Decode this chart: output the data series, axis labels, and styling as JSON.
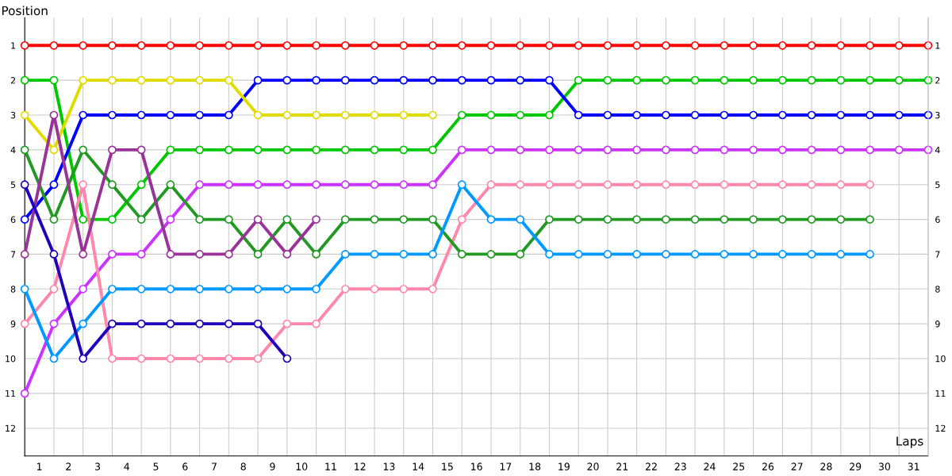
{
  "chart_data": {
    "type": "line",
    "xlabel": "Laps",
    "ylabel": "Position",
    "x": [
      0,
      1,
      2,
      3,
      4,
      5,
      6,
      7,
      8,
      9,
      10,
      11,
      12,
      13,
      14,
      15,
      16,
      17,
      18,
      19,
      20,
      21,
      22,
      23,
      24,
      25,
      26,
      27,
      28,
      29,
      30,
      31
    ],
    "xlim": [
      0,
      31
    ],
    "xticks": [
      {
        "value": 0.5,
        "label": "1"
      },
      {
        "value": 1.5,
        "label": "2"
      },
      {
        "value": 2.5,
        "label": "3"
      },
      {
        "value": 3.5,
        "label": "4"
      },
      {
        "value": 4.5,
        "label": "5"
      },
      {
        "value": 5.5,
        "label": "6"
      },
      {
        "value": 6.5,
        "label": "7"
      },
      {
        "value": 7.5,
        "label": "8"
      },
      {
        "value": 8.5,
        "label": "9"
      },
      {
        "value": 9.5,
        "label": "10"
      },
      {
        "value": 10.5,
        "label": "11"
      },
      {
        "value": 11.5,
        "label": "12"
      },
      {
        "value": 12.5,
        "label": "13"
      },
      {
        "value": 13.5,
        "label": "14"
      },
      {
        "value": 14.5,
        "label": "15"
      },
      {
        "value": 15.5,
        "label": "16"
      },
      {
        "value": 16.5,
        "label": "17"
      },
      {
        "value": 17.5,
        "label": "18"
      },
      {
        "value": 18.5,
        "label": "19"
      },
      {
        "value": 19.5,
        "label": "20"
      },
      {
        "value": 20.5,
        "label": "21"
      },
      {
        "value": 21.5,
        "label": "22"
      },
      {
        "value": 22.5,
        "label": "23"
      },
      {
        "value": 23.5,
        "label": "24"
      },
      {
        "value": 24.5,
        "label": "25"
      },
      {
        "value": 25.5,
        "label": "26"
      },
      {
        "value": 26.5,
        "label": "27"
      },
      {
        "value": 27.5,
        "label": "28"
      },
      {
        "value": 28.5,
        "label": "29"
      },
      {
        "value": 29.5,
        "label": "30"
      },
      {
        "value": 30.5,
        "label": "31"
      },
      {
        "value": 0,
        "label": null
      },
      {
        "value": 1,
        "label": null
      },
      {
        "value": 2,
        "label": null
      },
      {
        "value": 3,
        "label": null
      },
      {
        "value": 4,
        "label": null
      },
      {
        "value": 5,
        "label": null
      },
      {
        "value": 6,
        "label": null
      },
      {
        "value": 7,
        "label": null
      },
      {
        "value": 8,
        "label": null
      },
      {
        "value": 9,
        "label": null
      },
      {
        "value": 10,
        "label": null
      },
      {
        "value": 11,
        "label": null
      },
      {
        "value": 12,
        "label": null
      },
      {
        "value": 13,
        "label": null
      },
      {
        "value": 14,
        "label": null
      },
      {
        "value": 15,
        "label": null
      },
      {
        "value": 16,
        "label": null
      },
      {
        "value": 17,
        "label": null
      },
      {
        "value": 18,
        "label": null
      },
      {
        "value": 19,
        "label": null
      },
      {
        "value": 20,
        "label": null
      },
      {
        "value": 21,
        "label": null
      },
      {
        "value": 22,
        "label": null
      },
      {
        "value": 23,
        "label": null
      },
      {
        "value": 24,
        "label": null
      },
      {
        "value": 25,
        "label": null
      },
      {
        "value": 26,
        "label": null
      },
      {
        "value": 27,
        "label": null
      },
      {
        "value": 28,
        "label": null
      },
      {
        "value": 29,
        "label": null
      },
      {
        "value": 30,
        "label": null
      },
      {
        "value": 31,
        "label": null
      }
    ],
    "ylim": [
      12.8,
      0.2
    ],
    "yticks": [
      1,
      2,
      3,
      4,
      5,
      6,
      7,
      8,
      9,
      10,
      11,
      12
    ],
    "y2lim": [
      12.8,
      0.2
    ],
    "y2ticks": [
      1,
      2,
      3,
      4,
      5,
      6,
      7,
      8,
      9,
      10,
      11,
      12
    ],
    "grid": true,
    "legend": false,
    "marker": "circle",
    "line_style": "solid",
    "series": [
      {
        "color": "#ff0000",
        "values": [
          1,
          1,
          1,
          1,
          1,
          1,
          1,
          1,
          1,
          1,
          1,
          1,
          1,
          1,
          1,
          1,
          1,
          1,
          1,
          1,
          1,
          1,
          1,
          1,
          1,
          1,
          1,
          1,
          1,
          1,
          1,
          1
        ]
      },
      {
        "color": "#00c800",
        "values": [
          2,
          2,
          6,
          6,
          5,
          4,
          4,
          4,
          4,
          4,
          4,
          4,
          4,
          4,
          4,
          3,
          3,
          3,
          3,
          2,
          2,
          2,
          2,
          2,
          2,
          2,
          2,
          2,
          2,
          2,
          2,
          2
        ]
      },
      {
        "color": "#0000ff",
        "values": [
          6,
          5,
          3,
          3,
          3,
          3,
          3,
          3,
          2,
          2,
          2,
          2,
          2,
          2,
          2,
          2,
          2,
          2,
          2,
          3,
          3,
          3,
          3,
          3,
          3,
          3,
          3,
          3,
          3,
          3,
          3,
          3
        ]
      },
      {
        "color": "#e0dc00",
        "values": [
          3,
          4,
          2,
          2,
          2,
          2,
          2,
          2,
          3,
          3,
          3,
          3,
          3,
          3,
          3,
          null,
          null,
          null,
          null,
          null,
          null,
          null,
          null,
          null,
          null,
          null,
          null,
          null,
          null,
          null,
          null,
          null
        ]
      },
      {
        "color": "#cc33ff",
        "values": [
          11,
          9,
          8,
          7,
          7,
          6,
          5,
          5,
          5,
          5,
          5,
          5,
          5,
          5,
          5,
          4,
          4,
          4,
          4,
          4,
          4,
          4,
          4,
          4,
          4,
          4,
          4,
          4,
          4,
          4,
          4,
          4
        ]
      },
      {
        "color": "#ff88aa",
        "values": [
          9,
          8,
          5,
          10,
          10,
          10,
          10,
          10,
          10,
          9,
          9,
          8,
          8,
          8,
          8,
          6,
          5,
          5,
          5,
          5,
          5,
          5,
          5,
          5,
          5,
          5,
          5,
          5,
          5,
          5,
          null,
          null
        ]
      },
      {
        "color": "#229922",
        "values": [
          4,
          6,
          4,
          5,
          6,
          5,
          6,
          6,
          7,
          6,
          7,
          6,
          6,
          6,
          6,
          7,
          7,
          7,
          6,
          6,
          6,
          6,
          6,
          6,
          6,
          6,
          6,
          6,
          6,
          6,
          null,
          null
        ]
      },
      {
        "color": "#993399",
        "values": [
          7,
          3,
          7,
          4,
          4,
          7,
          7,
          7,
          6,
          7,
          6,
          null,
          null,
          null,
          null,
          null,
          null,
          null,
          null,
          null,
          null,
          null,
          null,
          null,
          null,
          null,
          null,
          null,
          null,
          null,
          null,
          null
        ]
      },
      {
        "color": "#0099ff",
        "values": [
          8,
          10,
          9,
          8,
          8,
          8,
          8,
          8,
          8,
          8,
          8,
          7,
          7,
          7,
          7,
          5,
          6,
          6,
          7,
          7,
          7,
          7,
          7,
          7,
          7,
          7,
          7,
          7,
          7,
          7,
          null,
          null
        ]
      },
      {
        "color": "#2200bb",
        "values": [
          5,
          7,
          10,
          9,
          9,
          9,
          9,
          9,
          9,
          10,
          null,
          null,
          null,
          null,
          null,
          null,
          null,
          null,
          null,
          null,
          null,
          null,
          null,
          null,
          null,
          null,
          null,
          null,
          null,
          null,
          null,
          null
        ]
      }
    ]
  }
}
